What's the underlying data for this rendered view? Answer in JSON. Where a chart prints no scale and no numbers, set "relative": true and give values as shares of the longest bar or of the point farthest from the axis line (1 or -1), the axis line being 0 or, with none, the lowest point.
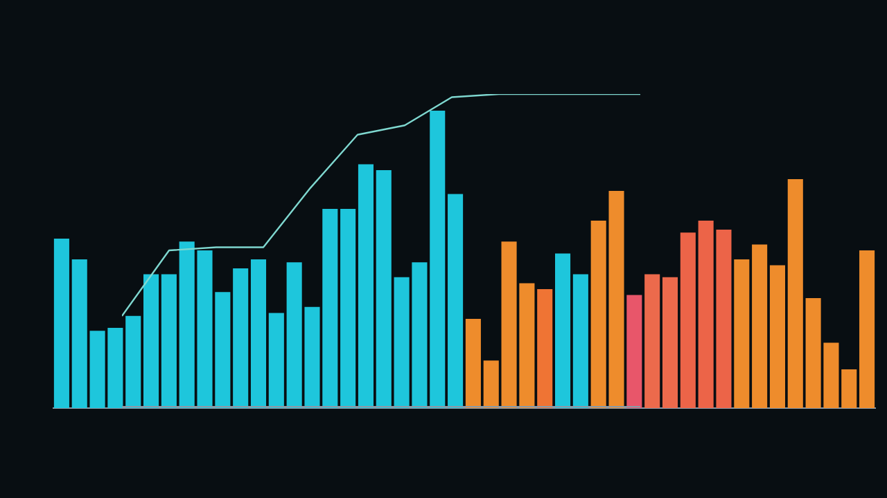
{
  "chart_data": [
    {
      "type": "bar",
      "relative": true,
      "categories": [
        null,
        null,
        null,
        null,
        null,
        null,
        null,
        null,
        null,
        null,
        null,
        null,
        null,
        null,
        null,
        null,
        null,
        null,
        null,
        null,
        null,
        null,
        null,
        null,
        null,
        null,
        null,
        null,
        null,
        null,
        null,
        null,
        null,
        null,
        null,
        null,
        null,
        null,
        null,
        null,
        null,
        null,
        null,
        null,
        null,
        null
      ],
      "values": [
        0.57,
        0.5,
        0.26,
        0.27,
        0.31,
        0.45,
        0.45,
        0.56,
        0.53,
        0.39,
        0.47,
        0.5,
        0.32,
        0.49,
        0.34,
        0.67,
        0.67,
        0.82,
        0.8,
        0.44,
        0.49,
        1,
        0.72,
        0.3,
        0.16,
        0.56,
        0.42,
        0.4,
        0.52,
        0.45,
        0.63,
        0.73,
        0.38,
        0.45,
        0.44,
        0.59,
        0.63,
        0.6,
        0.5,
        0.55,
        0.48,
        0.77,
        0.37,
        0.22,
        0.13,
        0.53
      ],
      "colors": [
        "#1ec6dc",
        "#1ec6dc",
        "#1ec6dc",
        "#1ec6dc",
        "#1ec6dc",
        "#1ec6dc",
        "#1ec6dc",
        "#1ec6dc",
        "#1ec6dc",
        "#1ec6dc",
        "#1ec6dc",
        "#1ec6dc",
        "#1ec6dc",
        "#1ec6dc",
        "#1ec6dc",
        "#1ec6dc",
        "#1ec6dc",
        "#1ec6dc",
        "#1ec6dc",
        "#1ec6dc",
        "#1ec6dc",
        "#1ec6dc",
        "#1ec6dc",
        "#ee8c2c",
        "#ee8c2c",
        "#ee8c2c",
        "#ee8c2c",
        "#ef7434",
        "#1ec6dc",
        "#1ec6dc",
        "#ee8c2c",
        "#ee8c2c",
        "#e8566a",
        "#ec6a4c",
        "#ec6a4c",
        "#ec6448",
        "#ec6448",
        "#ec6448",
        "#ee8c2c",
        "#ee8c2c",
        "#ee8c2c",
        "#ee8c2c",
        "#ee8c2c",
        "#ee8c2c",
        "#ee8c2c",
        "#ee8c2c"
      ]
    },
    {
      "type": "line",
      "relative": true,
      "categories": [
        null,
        null,
        null,
        null,
        null,
        null,
        null,
        null,
        null,
        null,
        null,
        null
      ],
      "color": "#7fd8d0",
      "values": [
        0.29,
        0.5,
        0.51,
        0.51,
        0.7,
        0.87,
        0.9,
        0.99,
        1,
        1,
        1,
        1
      ],
      "marker": "none"
    }
  ]
}
